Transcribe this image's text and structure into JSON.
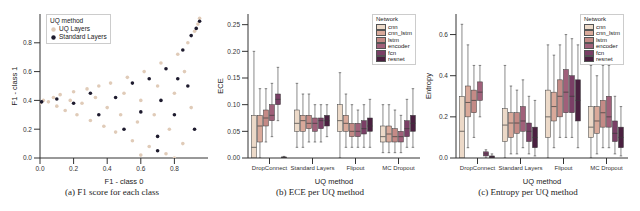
{
  "chart_data": [
    {
      "type": "scatter",
      "title": "(a) F1 score for each class",
      "x_label": "F1 - class 0",
      "y_label": "F1 - class 1",
      "xlim": [
        0,
        1
      ],
      "ylim": [
        0,
        1
      ],
      "xticks": [
        {
          "value": 0,
          "label": "0.0"
        },
        {
          "value": 0.2,
          "label": "0.2"
        },
        {
          "value": 0.4,
          "label": "0.4"
        },
        {
          "value": 0.6,
          "label": "0.6"
        },
        {
          "value": 0.8,
          "label": "0.8"
        }
      ],
      "yticks": [
        {
          "value": 0,
          "label": "0.0"
        },
        {
          "value": 0.2,
          "label": "0.2"
        },
        {
          "value": 0.4,
          "label": "0.4"
        },
        {
          "value": 0.6,
          "label": "0.6"
        },
        {
          "value": 0.8,
          "label": "0.8"
        }
      ],
      "grid": false,
      "legend": "upper left",
      "legend_title": "UQ method",
      "series": [
        {
          "name": "UQ Layers",
          "color": "#e0cbb8",
          "marker": "circle",
          "x": [
            0,
            0.02,
            0.05,
            0.08,
            0.1,
            0.12,
            0.15,
            0.18,
            0.2,
            0.22,
            0.25,
            0.28,
            0.3,
            0.33,
            0.35,
            0.38,
            0.4,
            0.42,
            0.45,
            0.48,
            0.5,
            0.52,
            0.55,
            0.58,
            0.6,
            0.62,
            0.65,
            0.68,
            0.7,
            0.72,
            0.75,
            0.77,
            0.8,
            0.82,
            0.85,
            0.86,
            0.88,
            0.9,
            0.92,
            0.94,
            0.95,
            0.6,
            0.8
          ],
          "y": [
            0.38,
            0.4,
            0.39,
            0.42,
            0.36,
            0.44,
            0.33,
            0.4,
            0.46,
            0.3,
            0.38,
            0.48,
            0.26,
            0.42,
            0.5,
            0.22,
            0.35,
            0.52,
            0.18,
            0.3,
            0.45,
            0.56,
            0.12,
            0.25,
            0.4,
            0.6,
            0.08,
            0.3,
            0.5,
            0.66,
            0.03,
            0.2,
            0.45,
            0.72,
            0.1,
            0.6,
            0.8,
            0.35,
            0.88,
            0.93,
            0.97,
            0.02,
            0
          ]
        },
        {
          "name": "Standard Layers",
          "color": "#1e1b2e",
          "marker": "circle",
          "x": [
            0.01,
            0.1,
            0.2,
            0.3,
            0.35,
            0.45,
            0.5,
            0.55,
            0.6,
            0.65,
            0.7,
            0.72,
            0.75,
            0.8,
            0.82,
            0.85,
            0.88,
            0.9,
            0.92,
            0.93,
            0.95,
            0.7
          ],
          "y": [
            0.39,
            0.41,
            0.38,
            0.45,
            0.3,
            0.42,
            0.2,
            0.52,
            0.32,
            0.55,
            0.15,
            0.4,
            0.62,
            0.3,
            0.55,
            0.75,
            0.5,
            0.85,
            0.2,
            0.9,
            0.95,
            0.05
          ]
        }
      ]
    },
    {
      "type": "box",
      "title": "(b) ECE per UQ method",
      "x_label": "UQ method",
      "y_label": "ECE",
      "categories": [
        "DropConnect",
        "Standard Layers",
        "Flipout",
        "MC Dropout"
      ],
      "ylim": [
        0,
        0.27
      ],
      "yticks": [
        {
          "value": 0,
          "label": "0.00"
        },
        {
          "value": 0.05,
          "label": "0.05"
        },
        {
          "value": 0.1,
          "label": "0.10"
        },
        {
          "value": 0.15,
          "label": "0.15"
        },
        {
          "value": 0.2,
          "label": "0.20"
        },
        {
          "value": 0.25,
          "label": "0.25"
        }
      ],
      "grid": false,
      "legend": "upper right",
      "legend_title": "Network",
      "series": [
        {
          "name": "cnn",
          "color": "#ecd9c8",
          "values": [
            {
              "min": 0,
              "q1": 0,
              "median": 0.02,
              "q3": 0.08,
              "max": 0.2
            },
            {
              "min": 0.02,
              "q1": 0.05,
              "median": 0.065,
              "q3": 0.09,
              "max": 0.14
            },
            {
              "min": 0,
              "q1": 0.05,
              "median": 0.07,
              "q3": 0.1,
              "max": 0.16
            },
            {
              "min": 0.01,
              "q1": 0.03,
              "median": 0.04,
              "q3": 0.06,
              "max": 0.1
            }
          ]
        },
        {
          "name": "cnn_lstm",
          "color": "#d9a99a",
          "values": [
            {
              "min": 0,
              "q1": 0.03,
              "median": 0.06,
              "q3": 0.08,
              "max": 0.13
            },
            {
              "min": 0.02,
              "q1": 0.05,
              "median": 0.07,
              "q3": 0.08,
              "max": 0.12
            },
            {
              "min": 0.02,
              "q1": 0.05,
              "median": 0.065,
              "q3": 0.08,
              "max": 0.12
            },
            {
              "min": 0.01,
              "q1": 0.03,
              "median": 0.045,
              "q3": 0.06,
              "max": 0.1
            }
          ]
        },
        {
          "name": "lstm",
          "color": "#c48a86",
          "values": [
            {
              "min": 0.03,
              "q1": 0.06,
              "median": 0.075,
              "q3": 0.09,
              "max": 0.13
            },
            {
              "min": 0.03,
              "q1": 0.055,
              "median": 0.065,
              "q3": 0.08,
              "max": 0.12
            },
            {
              "min": 0.02,
              "q1": 0.04,
              "median": 0.05,
              "q3": 0.065,
              "max": 0.1
            },
            {
              "min": 0.01,
              "q1": 0.03,
              "median": 0.04,
              "q3": 0.055,
              "max": 0.09
            }
          ]
        },
        {
          "name": "encoder",
          "color": "#a0607a",
          "values": [
            {
              "min": 0.04,
              "q1": 0.07,
              "median": 0.08,
              "q3": 0.1,
              "max": 0.14
            },
            {
              "min": 0.03,
              "q1": 0.05,
              "median": 0.065,
              "q3": 0.075,
              "max": 0.1
            },
            {
              "min": 0.02,
              "q1": 0.04,
              "median": 0.05,
              "q3": 0.065,
              "max": 0.09
            },
            {
              "min": 0.01,
              "q1": 0.03,
              "median": 0.04,
              "q3": 0.05,
              "max": 0.08
            }
          ]
        },
        {
          "name": "fcn",
          "color": "#7a3f66",
          "values": [
            {
              "min": 0.07,
              "q1": 0.1,
              "median": 0.11,
              "q3": 0.12,
              "max": 0.17
            },
            {
              "min": 0.03,
              "q1": 0.055,
              "median": 0.07,
              "q3": 0.075,
              "max": 0.1
            },
            {
              "min": 0.02,
              "q1": 0.045,
              "median": 0.055,
              "q3": 0.07,
              "max": 0.1
            },
            {
              "min": 0.02,
              "q1": 0.04,
              "median": 0.055,
              "q3": 0.07,
              "max": 0.11
            }
          ]
        },
        {
          "name": "resnet",
          "color": "#4a2040",
          "values": [
            {
              "min": 0,
              "q1": 0,
              "median": 0.001,
              "q3": 0.002,
              "max": 0.003
            },
            {
              "min": 0.04,
              "q1": 0.06,
              "median": 0.07,
              "q3": 0.08,
              "max": 0.1
            },
            {
              "min": 0.02,
              "q1": 0.05,
              "median": 0.06,
              "q3": 0.075,
              "max": 0.11
            },
            {
              "min": 0.02,
              "q1": 0.05,
              "median": 0.065,
              "q3": 0.08,
              "max": 0.13
            }
          ]
        }
      ]
    },
    {
      "type": "box",
      "title": "(c) Entropy per UQ method",
      "x_label": "UQ method",
      "y_label": "Entropy",
      "categories": [
        "DropConnect",
        "Standard Layers",
        "Flipout",
        "MC Dropout"
      ],
      "ylim": [
        0,
        0.7
      ],
      "yticks": [
        {
          "value": 0,
          "label": "0.0"
        },
        {
          "value": 0.2,
          "label": "0.2"
        },
        {
          "value": 0.4,
          "label": "0.4"
        },
        {
          "value": 0.6,
          "label": "0.6"
        }
      ],
      "grid": false,
      "legend": "upper right",
      "legend_title": "Network",
      "series": [
        {
          "name": "cnn",
          "color": "#ecd9c8",
          "values": [
            {
              "min": 0,
              "q1": 0,
              "median": 0.13,
              "q3": 0.3,
              "max": 0.65
            },
            {
              "min": 0,
              "q1": 0.08,
              "median": 0.16,
              "q3": 0.24,
              "max": 0.45
            },
            {
              "min": 0,
              "q1": 0.1,
              "median": 0.2,
              "q3": 0.33,
              "max": 0.55
            },
            {
              "min": 0,
              "q1": 0.1,
              "median": 0.15,
              "q3": 0.25,
              "max": 0.45
            }
          ]
        },
        {
          "name": "cnn_lstm",
          "color": "#d9a99a",
          "values": [
            {
              "min": 0.05,
              "q1": 0.2,
              "median": 0.27,
              "q3": 0.35,
              "max": 0.55
            },
            {
              "min": 0.02,
              "q1": 0.1,
              "median": 0.17,
              "q3": 0.22,
              "max": 0.35
            },
            {
              "min": 0.05,
              "q1": 0.18,
              "median": 0.25,
              "q3": 0.32,
              "max": 0.5
            },
            {
              "min": 0.02,
              "q1": 0.12,
              "median": 0.18,
              "q3": 0.25,
              "max": 0.4
            }
          ]
        },
        {
          "name": "lstm",
          "color": "#c48a86",
          "values": [
            {
              "min": 0.1,
              "q1": 0.22,
              "median": 0.28,
              "q3": 0.33,
              "max": 0.45
            },
            {
              "min": 0.02,
              "q1": 0.12,
              "median": 0.17,
              "q3": 0.22,
              "max": 0.33
            },
            {
              "min": 0.1,
              "q1": 0.2,
              "median": 0.3,
              "q3": 0.38,
              "max": 0.55
            },
            {
              "min": 0.05,
              "q1": 0.15,
              "median": 0.22,
              "q3": 0.28,
              "max": 0.45
            }
          ]
        },
        {
          "name": "encoder",
          "color": "#a0607a",
          "values": [
            {
              "min": 0.2,
              "q1": 0.28,
              "median": 0.32,
              "q3": 0.37,
              "max": 0.45
            },
            {
              "min": 0.05,
              "q1": 0.13,
              "median": 0.18,
              "q3": 0.25,
              "max": 0.38
            },
            {
              "min": 0.1,
              "q1": 0.22,
              "median": 0.32,
              "q3": 0.43,
              "max": 0.6
            },
            {
              "min": 0.05,
              "q1": 0.15,
              "median": 0.2,
              "q3": 0.3,
              "max": 0.45
            }
          ]
        },
        {
          "name": "fcn",
          "color": "#7a3f66",
          "values": [
            {
              "min": 0,
              "q1": 0.01,
              "median": 0.02,
              "q3": 0.03,
              "max": 0.04
            },
            {
              "min": 0.02,
              "q1": 0.08,
              "median": 0.13,
              "q3": 0.17,
              "max": 0.3
            },
            {
              "min": 0.1,
              "q1": 0.22,
              "median": 0.3,
              "q3": 0.4,
              "max": 0.58
            },
            {
              "min": 0.02,
              "q1": 0.08,
              "median": 0.12,
              "q3": 0.18,
              "max": 0.3
            }
          ]
        },
        {
          "name": "resnet",
          "color": "#4a2040",
          "values": [
            {
              "min": 0,
              "q1": 0,
              "median": 0.005,
              "q3": 0.01,
              "max": 0.02
            },
            {
              "min": 0.01,
              "q1": 0.05,
              "median": 0.1,
              "q3": 0.15,
              "max": 0.28
            },
            {
              "min": 0.05,
              "q1": 0.18,
              "median": 0.28,
              "q3": 0.38,
              "max": 0.55
            },
            {
              "min": 0.01,
              "q1": 0.05,
              "median": 0.1,
              "q3": 0.15,
              "max": 0.25
            }
          ]
        }
      ]
    }
  ]
}
